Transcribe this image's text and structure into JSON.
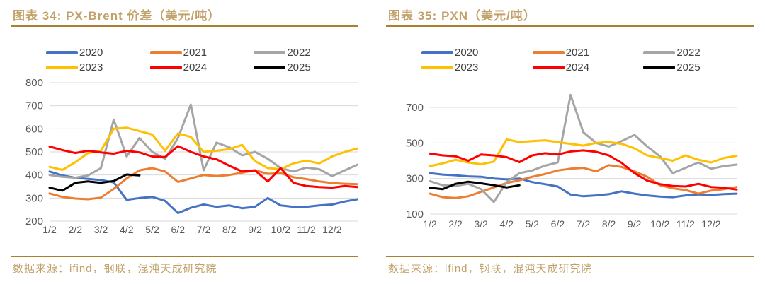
{
  "colors": {
    "accent_gold_text": "#C2A169",
    "accent_gold_rule": "#A9802F",
    "axis_text": "#595959",
    "legend_text": "#404040",
    "gridline": "#D9D9D9",
    "series_2020": "#4472C4",
    "series_2021": "#ED7D31",
    "series_2022": "#A5A5A5",
    "series_2023": "#FFC000",
    "series_2024": "#FF0000",
    "series_2025": "#000000"
  },
  "panels": [
    {
      "title": "图表 34: PX-Brent 价差（美元/吨）",
      "source": "数据来源：ifind，钢联，混沌天成研究院"
    },
    {
      "title": "图表 35: PXN（美元/吨）",
      "source": "数据来源：ifind，钢联，混沌天成研究院"
    }
  ],
  "chart_data": [
    {
      "type": "line",
      "title": "图表 34: PX-Brent 价差（美元/吨）",
      "xlabel": "",
      "ylabel": "",
      "ylim": [
        200,
        800
      ],
      "yticks": [
        200,
        300,
        400,
        500,
        600,
        700,
        800
      ],
      "x_tick_labels": [
        "1/2",
        "2/2",
        "3/2",
        "4/2",
        "5/2",
        "6/2",
        "7/2",
        "8/2",
        "9/2",
        "10/2",
        "11/2",
        "12/2"
      ],
      "sampling": "semi-monthly, index i = month i/2 from Jan 2",
      "grid": true,
      "legend_position": "top",
      "series": [
        {
          "name": "2020",
          "color": "#4472C4",
          "values": [
            415,
            398,
            388,
            383,
            378,
            368,
            292,
            300,
            305,
            288,
            235,
            258,
            272,
            262,
            268,
            256,
            262,
            300,
            268,
            262,
            262,
            268,
            272,
            285,
            295
          ]
        },
        {
          "name": "2021",
          "color": "#ED7D31",
          "values": [
            320,
            305,
            298,
            295,
            302,
            340,
            385,
            420,
            430,
            415,
            370,
            385,
            400,
            395,
            400,
            410,
            420,
            405,
            408,
            390,
            382,
            372,
            365,
            362,
            360
          ]
        },
        {
          "name": "2022",
          "color": "#A5A5A5",
          "values": [
            400,
            392,
            388,
            398,
            430,
            640,
            480,
            560,
            500,
            470,
            560,
            705,
            420,
            540,
            520,
            485,
            500,
            470,
            430,
            415,
            432,
            425,
            395,
            420,
            445
          ]
        },
        {
          "name": "2023",
          "color": "#FFC000",
          "values": [
            435,
            422,
            455,
            495,
            505,
            600,
            605,
            590,
            575,
            505,
            580,
            565,
            500,
            505,
            512,
            530,
            460,
            430,
            425,
            450,
            462,
            450,
            480,
            500,
            515
          ]
        },
        {
          "name": "2024",
          "color": "#FF0000",
          "values": [
            523,
            508,
            495,
            505,
            498,
            492,
            505,
            498,
            480,
            478,
            525,
            500,
            480,
            468,
            440,
            415,
            420,
            372,
            430,
            366,
            352,
            348,
            345,
            352,
            348
          ]
        },
        {
          "name": "2025",
          "color": "#000000",
          "values": [
            345,
            332,
            366,
            372,
            366,
            374,
            402,
            398
          ]
        }
      ]
    },
    {
      "type": "line",
      "title": "图表 35: PXN（美元/吨）",
      "xlabel": "",
      "ylabel": "",
      "ylim": [
        100,
        700
      ],
      "yticks": [
        100,
        300,
        500,
        700
      ],
      "x_tick_labels": [
        "1/2",
        "2/2",
        "3/2",
        "4/2",
        "5/2",
        "6/2",
        "7/2",
        "8/2",
        "9/2",
        "10/2",
        "11/2",
        "12/2"
      ],
      "sampling": "semi-monthly, index i = month i/2 from Jan 2",
      "grid": true,
      "legend_position": "top",
      "series": [
        {
          "name": "2020",
          "color": "#4472C4",
          "values": [
            330,
            322,
            318,
            312,
            310,
            300,
            295,
            300,
            280,
            268,
            255,
            210,
            200,
            205,
            212,
            228,
            215,
            205,
            198,
            195,
            205,
            210,
            208,
            212,
            215
          ]
        },
        {
          "name": "2021",
          "color": "#ED7D31",
          "values": [
            215,
            195,
            190,
            200,
            225,
            250,
            275,
            290,
            310,
            325,
            345,
            355,
            360,
            340,
            375,
            365,
            340,
            310,
            262,
            245,
            235,
            215,
            232,
            240,
            252
          ]
        },
        {
          "name": "2022",
          "color": "#A5A5A5",
          "values": [
            285,
            262,
            258,
            270,
            240,
            168,
            280,
            330,
            345,
            372,
            390,
            770,
            560,
            500,
            480,
            510,
            545,
            480,
            425,
            330,
            360,
            390,
            355,
            370,
            378
          ]
        },
        {
          "name": "2023",
          "color": "#FFC000",
          "values": [
            370,
            385,
            405,
            390,
            380,
            395,
            520,
            505,
            510,
            515,
            505,
            495,
            485,
            500,
            505,
            495,
            470,
            430,
            415,
            400,
            430,
            405,
            390,
            415,
            428
          ]
        },
        {
          "name": "2024",
          "color": "#FF0000",
          "values": [
            440,
            430,
            425,
            400,
            435,
            430,
            420,
            392,
            430,
            442,
            435,
            452,
            458,
            450,
            430,
            388,
            330,
            288,
            268,
            258,
            255,
            270,
            252,
            248,
            238
          ]
        },
        {
          "name": "2025",
          "color": "#000000",
          "values": [
            248,
            240,
            270,
            282,
            273,
            262,
            250,
            262
          ]
        }
      ]
    }
  ]
}
